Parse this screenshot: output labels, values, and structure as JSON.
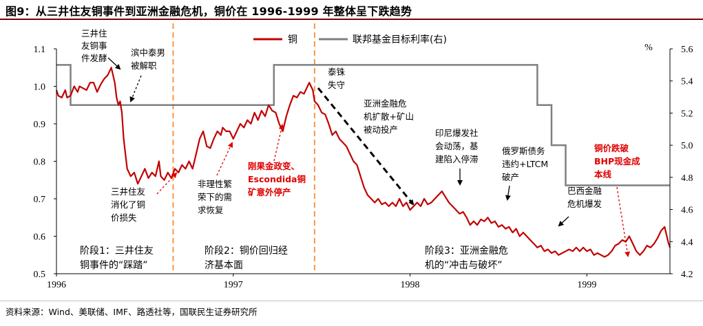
{
  "title": "图9：从三井住友铜事件到亚洲金融危机，铜价在 1996-1999 年整体呈下跌趋势",
  "source": "资料来源：Wind、美联储、IMF、路透社等，国联民生证券研究所",
  "chart_data": {
    "type": "line",
    "x_ticks": [
      "1996",
      "1997",
      "1998",
      "1999"
    ],
    "x_range": [
      1996.0,
      1999.47
    ],
    "left_axis": {
      "range": [
        0.5,
        1.1
      ],
      "ticks": [
        "1.1",
        "1.0",
        "0.9",
        "0.8",
        "0.7",
        "0.6",
        "0.5"
      ]
    },
    "right_axis": {
      "range": [
        4.2,
        5.6
      ],
      "unit": "%",
      "ticks": [
        "5.6",
        "5.4",
        "5.2",
        "5.0",
        "4.8",
        "4.6",
        "4.4",
        "4.2"
      ]
    },
    "legend": {
      "placement": "top-center",
      "entries": [
        "铜",
        "联邦基金目标利率(右)"
      ]
    },
    "colors": {
      "copper": "#c00000",
      "fed": "#7f7f7f",
      "stage_line": "#f79646",
      "red_text": "#e00000",
      "title_rule": "#7a0000"
    },
    "series": [
      {
        "name": "铜",
        "axis": "left",
        "points": [
          [
            1996.0,
            0.99
          ],
          [
            1996.01,
            0.975
          ],
          [
            1996.03,
            0.97
          ],
          [
            1996.05,
            0.99
          ],
          [
            1996.06,
            0.97
          ],
          [
            1996.08,
            0.975
          ],
          [
            1996.1,
            1.0
          ],
          [
            1996.12,
            0.985
          ],
          [
            1996.13,
            1.0
          ],
          [
            1996.15,
            0.995
          ],
          [
            1996.17,
            0.99
          ],
          [
            1996.19,
            1.01
          ],
          [
            1996.21,
            1.01
          ],
          [
            1996.23,
            0.985
          ],
          [
            1996.25,
            1.005
          ],
          [
            1996.27,
            1.02
          ],
          [
            1996.29,
            1.03
          ],
          [
            1996.31,
            1.05
          ],
          [
            1996.33,
            1.01
          ],
          [
            1996.34,
            0.97
          ],
          [
            1996.35,
            0.95
          ],
          [
            1996.36,
            0.96
          ],
          [
            1996.37,
            0.93
          ],
          [
            1996.38,
            0.86
          ],
          [
            1996.39,
            0.82
          ],
          [
            1996.4,
            0.78
          ],
          [
            1996.42,
            0.76
          ],
          [
            1996.44,
            0.77
          ],
          [
            1996.46,
            0.74
          ],
          [
            1996.48,
            0.76
          ],
          [
            1996.5,
            0.78
          ],
          [
            1996.52,
            0.755
          ],
          [
            1996.54,
            0.77
          ],
          [
            1996.56,
            0.76
          ],
          [
            1996.58,
            0.8
          ],
          [
            1996.59,
            0.76
          ],
          [
            1996.61,
            0.75
          ],
          [
            1996.63,
            0.77
          ],
          [
            1996.65,
            0.755
          ],
          [
            1996.67,
            0.78
          ],
          [
            1996.69,
            0.77
          ],
          [
            1996.71,
            0.79
          ],
          [
            1996.73,
            0.78
          ],
          [
            1996.75,
            0.8
          ],
          [
            1996.77,
            0.78
          ],
          [
            1996.79,
            0.82
          ],
          [
            1996.81,
            0.86
          ],
          [
            1996.83,
            0.88
          ],
          [
            1996.85,
            0.84
          ],
          [
            1996.87,
            0.835
          ],
          [
            1996.89,
            0.86
          ],
          [
            1996.91,
            0.88
          ],
          [
            1996.93,
            0.87
          ],
          [
            1996.94,
            0.89
          ],
          [
            1996.96,
            0.88
          ],
          [
            1996.98,
            0.88
          ],
          [
            1997.0,
            0.86
          ],
          [
            1997.02,
            0.88
          ],
          [
            1997.04,
            0.9
          ],
          [
            1997.06,
            0.89
          ],
          [
            1997.08,
            0.91
          ],
          [
            1997.1,
            0.9
          ],
          [
            1997.12,
            0.93
          ],
          [
            1997.14,
            0.91
          ],
          [
            1997.16,
            0.935
          ],
          [
            1997.18,
            0.92
          ],
          [
            1997.2,
            0.95
          ],
          [
            1997.22,
            0.935
          ],
          [
            1997.24,
            0.93
          ],
          [
            1997.26,
            0.9
          ],
          [
            1997.28,
            0.88
          ],
          [
            1997.3,
            0.92
          ],
          [
            1997.32,
            0.95
          ],
          [
            1997.34,
            0.975
          ],
          [
            1997.36,
            0.97
          ],
          [
            1997.38,
            0.985
          ],
          [
            1997.4,
            0.98
          ],
          [
            1997.42,
            1.0
          ],
          [
            1997.43,
            1.01
          ],
          [
            1997.45,
            0.99
          ],
          [
            1997.46,
            0.96
          ],
          [
            1997.48,
            0.95
          ],
          [
            1997.5,
            0.93
          ],
          [
            1997.52,
            0.925
          ],
          [
            1997.54,
            0.9
          ],
          [
            1997.56,
            0.87
          ],
          [
            1997.58,
            0.88
          ],
          [
            1997.6,
            0.86
          ],
          [
            1997.62,
            0.85
          ],
          [
            1997.64,
            0.84
          ],
          [
            1997.66,
            0.82
          ],
          [
            1997.68,
            0.8
          ],
          [
            1997.7,
            0.79
          ],
          [
            1997.72,
            0.76
          ],
          [
            1997.74,
            0.73
          ],
          [
            1997.76,
            0.71
          ],
          [
            1997.78,
            0.7
          ],
          [
            1997.8,
            0.69
          ],
          [
            1997.82,
            0.7
          ],
          [
            1997.84,
            0.685
          ],
          [
            1997.86,
            0.69
          ],
          [
            1997.88,
            0.68
          ],
          [
            1997.9,
            0.69
          ],
          [
            1997.92,
            0.68
          ],
          [
            1997.94,
            0.7
          ],
          [
            1997.96,
            0.68
          ],
          [
            1997.98,
            0.69
          ],
          [
            1998.0,
            0.67
          ],
          [
            1998.02,
            0.68
          ],
          [
            1998.04,
            0.69
          ],
          [
            1998.06,
            0.68
          ],
          [
            1998.08,
            0.7
          ],
          [
            1998.1,
            0.685
          ],
          [
            1998.12,
            0.69
          ],
          [
            1998.14,
            0.7
          ],
          [
            1998.16,
            0.71
          ],
          [
            1998.18,
            0.72
          ],
          [
            1998.2,
            0.705
          ],
          [
            1998.22,
            0.69
          ],
          [
            1998.24,
            0.68
          ],
          [
            1998.26,
            0.67
          ],
          [
            1998.28,
            0.66
          ],
          [
            1998.3,
            0.665
          ],
          [
            1998.32,
            0.65
          ],
          [
            1998.34,
            0.63
          ],
          [
            1998.36,
            0.64
          ],
          [
            1998.38,
            0.63
          ],
          [
            1998.4,
            0.645
          ],
          [
            1998.42,
            0.64
          ],
          [
            1998.44,
            0.65
          ],
          [
            1998.46,
            0.635
          ],
          [
            1998.48,
            0.64
          ],
          [
            1998.5,
            0.625
          ],
          [
            1998.52,
            0.63
          ],
          [
            1998.54,
            0.62
          ],
          [
            1998.56,
            0.625
          ],
          [
            1998.58,
            0.61
          ],
          [
            1998.6,
            0.62
          ],
          [
            1998.62,
            0.6
          ],
          [
            1998.64,
            0.61
          ],
          [
            1998.66,
            0.6
          ],
          [
            1998.68,
            0.59
          ],
          [
            1998.7,
            0.58
          ],
          [
            1998.72,
            0.57
          ],
          [
            1998.74,
            0.575
          ],
          [
            1998.76,
            0.56
          ],
          [
            1998.78,
            0.565
          ],
          [
            1998.8,
            0.555
          ],
          [
            1998.82,
            0.56
          ],
          [
            1998.84,
            0.55
          ],
          [
            1998.86,
            0.555
          ],
          [
            1998.88,
            0.56
          ],
          [
            1998.9,
            0.565
          ],
          [
            1998.92,
            0.56
          ],
          [
            1998.94,
            0.57
          ],
          [
            1998.96,
            0.56
          ],
          [
            1998.98,
            0.57
          ],
          [
            1999.0,
            0.56
          ],
          [
            1999.02,
            0.565
          ],
          [
            1999.04,
            0.55
          ],
          [
            1999.06,
            0.555
          ],
          [
            1999.08,
            0.55
          ],
          [
            1999.1,
            0.545
          ],
          [
            1999.12,
            0.55
          ],
          [
            1999.14,
            0.56
          ],
          [
            1999.16,
            0.575
          ],
          [
            1999.18,
            0.58
          ],
          [
            1999.2,
            0.59
          ],
          [
            1999.22,
            0.585
          ],
          [
            1999.24,
            0.6
          ],
          [
            1999.26,
            0.58
          ],
          [
            1999.28,
            0.56
          ],
          [
            1999.3,
            0.55
          ],
          [
            1999.32,
            0.56
          ],
          [
            1999.34,
            0.575
          ],
          [
            1999.36,
            0.57
          ],
          [
            1999.38,
            0.58
          ],
          [
            1999.4,
            0.595
          ],
          [
            1999.42,
            0.615
          ],
          [
            1999.44,
            0.625
          ],
          [
            1999.46,
            0.585
          ],
          [
            1999.47,
            0.57
          ]
        ]
      },
      {
        "name": "联邦基金目标利率(右)",
        "axis": "right",
        "points": [
          [
            1996.0,
            5.5
          ],
          [
            1996.08,
            5.5
          ],
          [
            1996.08,
            5.25
          ],
          [
            1997.23,
            5.25
          ],
          [
            1997.23,
            5.5
          ],
          [
            1998.72,
            5.5
          ],
          [
            1998.72,
            5.25
          ],
          [
            1998.8,
            5.25
          ],
          [
            1998.8,
            5.0
          ],
          [
            1998.88,
            5.0
          ],
          [
            1998.88,
            4.75
          ],
          [
            1999.47,
            4.75
          ]
        ]
      }
    ],
    "stage_dividers": [
      1996.66,
      1997.46
    ],
    "annotations": {
      "sumitomo_start": [
        "三井住",
        "友铜事",
        "件发酵"
      ],
      "hamanaka": [
        "滨中泰男",
        "被解职"
      ],
      "sumitomo_digest": [
        "三井住友",
        "消化了铜",
        "价损失"
      ],
      "irrational": [
        "非理性繁",
        "荣下的需",
        "求恢复"
      ],
      "congo": [
        "刚果金政变、",
        "Escondida铜",
        "矿意外停产"
      ],
      "taizhu": [
        "泰铢",
        "失守"
      ],
      "asia_crisis": [
        "亚洲金融危",
        "机扩散+矿山",
        "被动投产"
      ],
      "indonesia": [
        "印尼爆发社",
        "会动荡，基",
        "建陷入停滞"
      ],
      "russia": [
        "俄罗斯债务",
        "违约+LTCM",
        "破产"
      ],
      "brazil": [
        "巴西金融",
        "危机爆发"
      ],
      "bhp": [
        "铜价跌破",
        "BHP现金成",
        "本线"
      ],
      "stage1": [
        "阶段1：三井住友",
        "铜事件的“踩踏”"
      ],
      "stage2": [
        "阶段2：铜价回归经",
        "济基本面"
      ],
      "stage3": [
        "阶段3：亚洲金融危",
        "机的“冲击与破坏”"
      ]
    }
  }
}
